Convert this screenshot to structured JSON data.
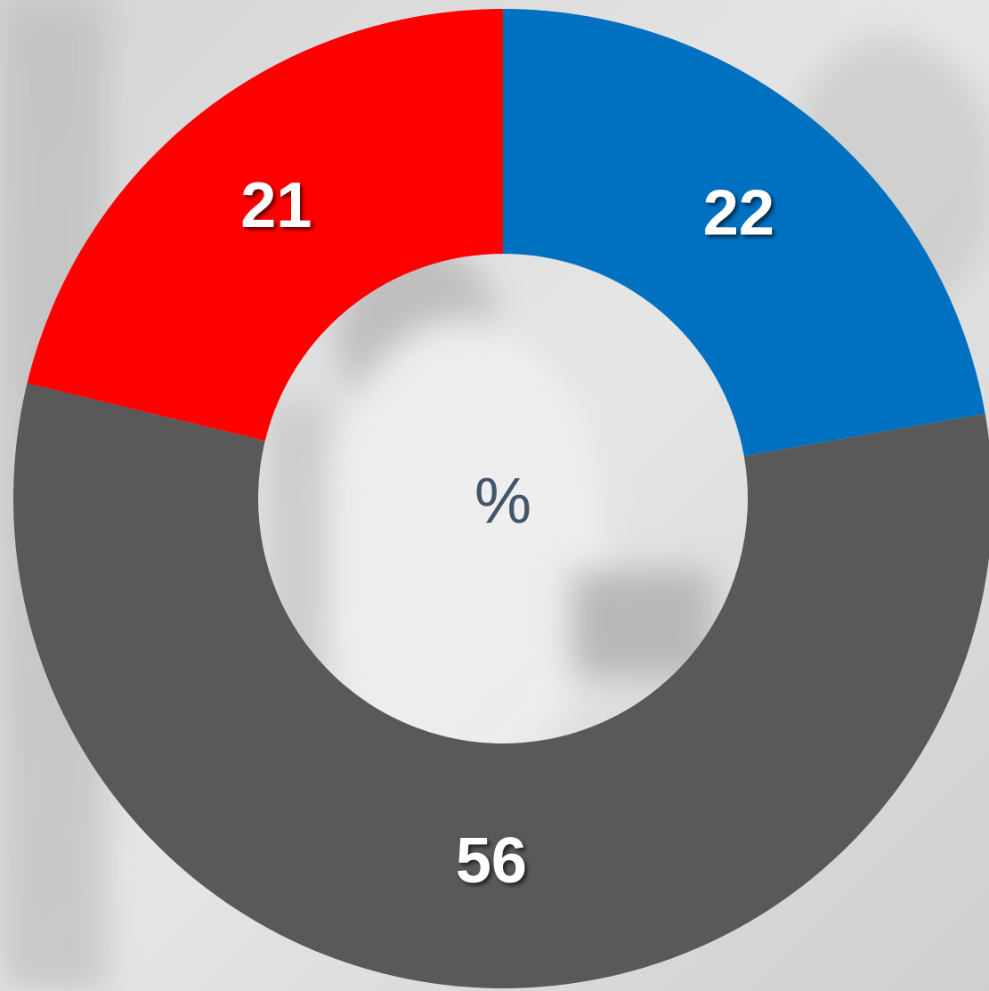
{
  "chart_data": {
    "type": "donut",
    "values": [
      22,
      56,
      21
    ],
    "colors": [
      "#0070c0",
      "#595959",
      "#ff0000"
    ],
    "center_label": "%"
  }
}
